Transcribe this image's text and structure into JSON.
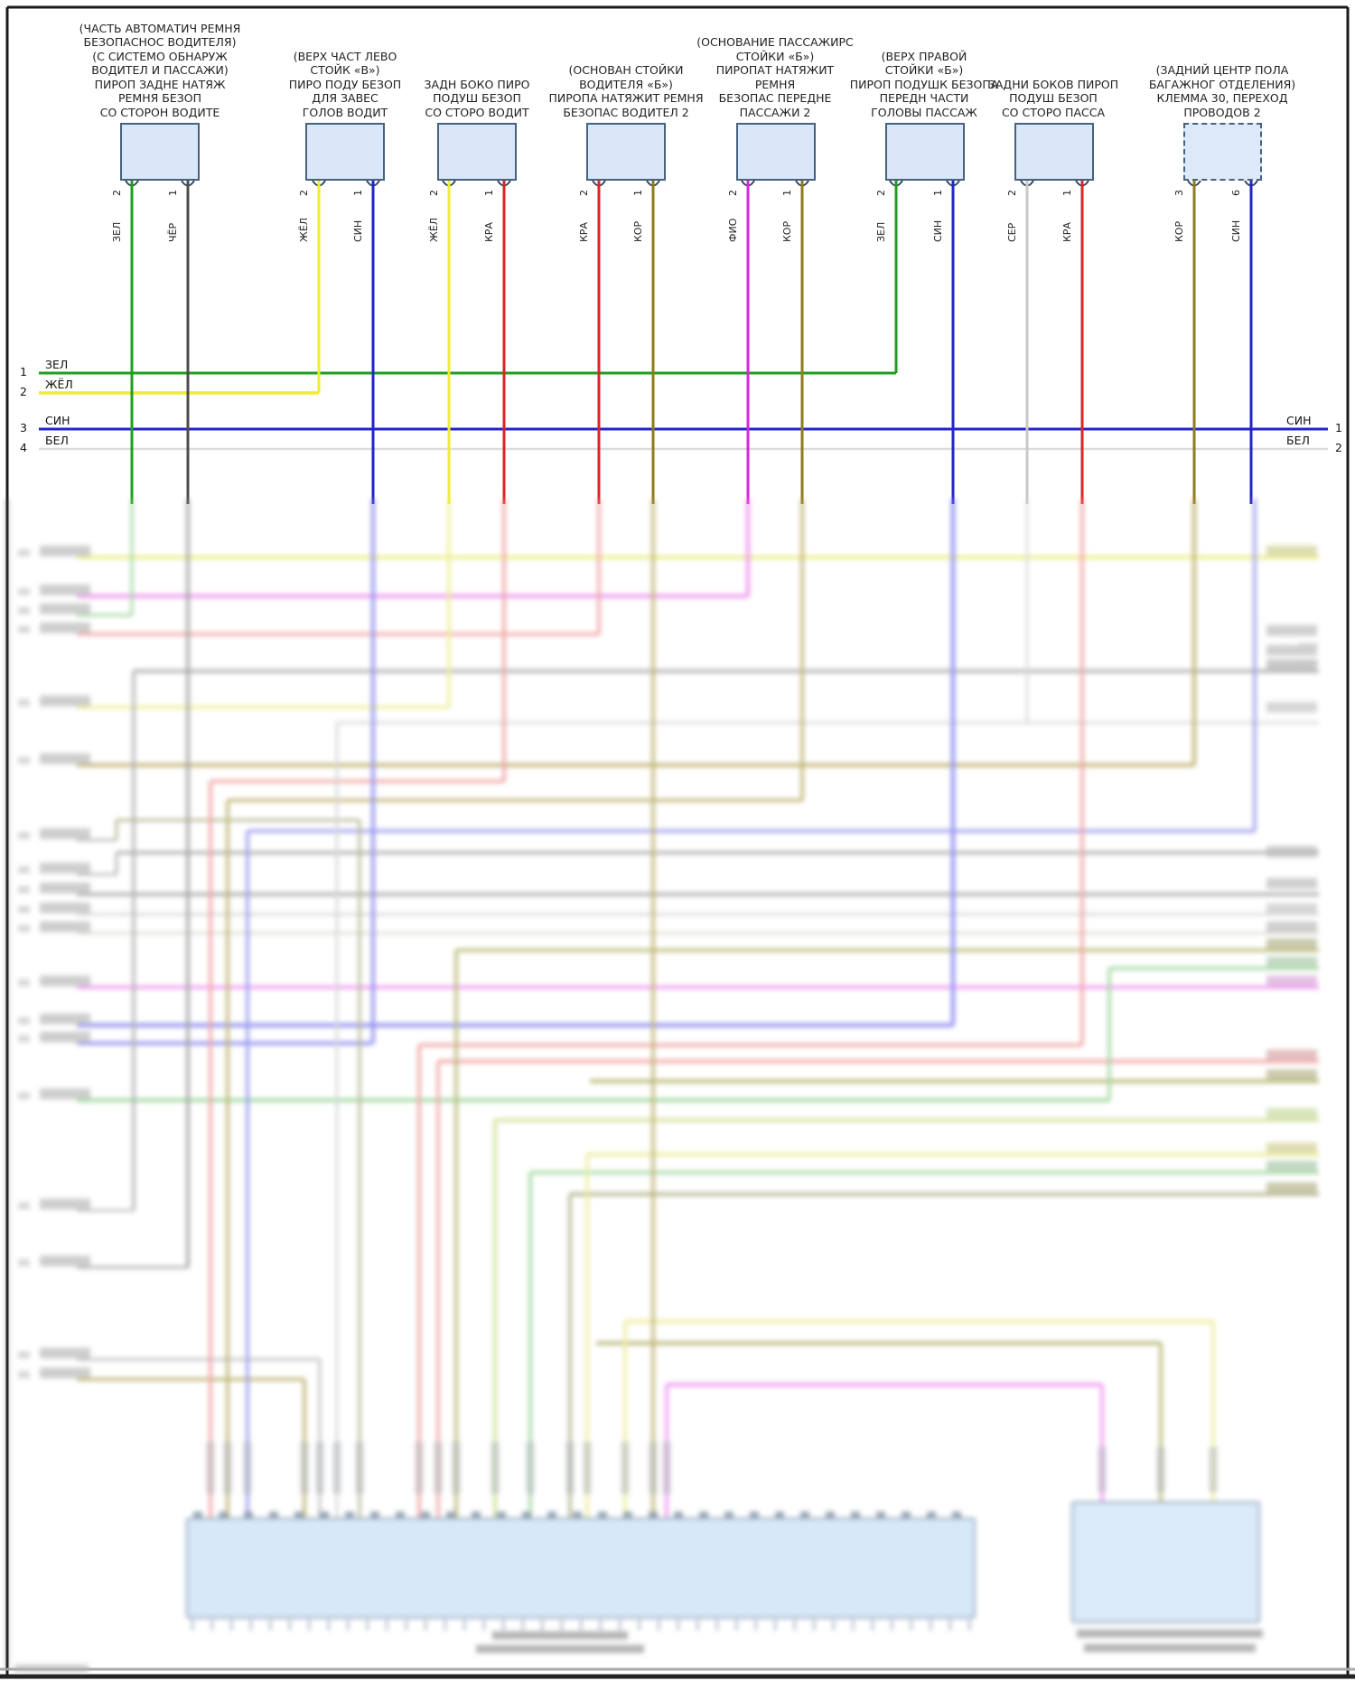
{
  "diagram": {
    "kind": "airbag-pyrotechnic-wiring-diagram",
    "language": "ru",
    "connectors": [
      {
        "id": "1",
        "label": "(ЧАСТЬ АВТОМАТИЧ РЕМНЯ\nБЕЗОПАСНОС ВОДИТЕЛЯ)\n(С СИСТЕМО ОБНАРУЖ\nВОДИТЕЛ И ПАССАЖИ)\nПИРОП ЗАДНЕ НАТЯЖ\nРЕМНЯ БЕЗОП\nСО СТОРОН ВОДИТЕ",
        "pins": [
          {
            "n": "2",
            "wire": "ЗЕЛ"
          },
          {
            "n": "1",
            "wire": "ЧЁР"
          }
        ]
      },
      {
        "id": "2",
        "label": "(ВЕРХ ЧАСТ ЛЕВО\nСТОЙК «В»)\nПИРО ПОДУ БЕЗОП\nДЛЯ ЗАВЕС\nГОЛОВ ВОДИТ",
        "pins": [
          {
            "n": "2",
            "wire": "ЖЁЛ"
          },
          {
            "n": "1",
            "wire": "СИН"
          }
        ]
      },
      {
        "id": "3",
        "label": "ЗАДН БОКО ПИРО\nПОДУШ БЕЗОП\nСО СТОРО ВОДИТ",
        "pins": [
          {
            "n": "2",
            "wire": "ЖЁЛ"
          },
          {
            "n": "1",
            "wire": "КРА"
          }
        ]
      },
      {
        "id": "4",
        "label": "(ОСНОВАН СТОЙКИ\nВОДИТЕЛЯ «Б»)\nПИРОПА НАТЯЖИТ РЕМНЯ\nБЕЗОПАС ВОДИТЕЛ 2",
        "pins": [
          {
            "n": "2",
            "wire": "КРА"
          },
          {
            "n": "1",
            "wire": "КОР"
          }
        ]
      },
      {
        "id": "5",
        "label": "(ОСНОВАНИЕ ПАССАЖИРС\nСТОЙКИ «Б»)\nПИРОПАТ НАТЯЖИТ\nРЕМНЯ\nБЕЗОПАС ПЕРЕДНЕ\nПАССАЖИ 2",
        "pins": [
          {
            "n": "2",
            "wire": "ФИО"
          },
          {
            "n": "1",
            "wire": "КОР"
          }
        ]
      },
      {
        "id": "6",
        "label": "(ВЕРХ ПРАВОЙ\nСТОЙКИ «Б»)\nПИРОП ПОДУШК БЕЗОПА\nПЕРЕДН ЧАСТИ\nГОЛОВЫ ПАССАЖ",
        "pins": [
          {
            "n": "2",
            "wire": "ЗЕЛ"
          },
          {
            "n": "1",
            "wire": "СИН"
          }
        ]
      },
      {
        "id": "7",
        "label": "ЗАДНИ БОКОВ ПИРОП\nПОДУШ БЕЗОП\nСО СТОРО ПАССА",
        "pins": [
          {
            "n": "2",
            "wire": "СЕР"
          },
          {
            "n": "1",
            "wire": "КРА"
          }
        ]
      },
      {
        "id": "8",
        "label": "(ЗАДНИЙ ЦЕНТР ПОЛА\nБАГАЖНОГ ОТДЕЛЕНИЯ)\nКЛЕММА 30, ПЕРЕХОД\nПРОВОДОВ 2",
        "dashed": true,
        "pins": [
          {
            "n": "3",
            "wire": "КОР"
          },
          {
            "n": "6",
            "wire": "СИН"
          }
        ]
      }
    ],
    "bus_rows_left": [
      {
        "num": "1",
        "label": "ЗЕЛ"
      },
      {
        "num": "2",
        "label": "ЖЁЛ"
      },
      {
        "num": "3",
        "label": "СИН"
      },
      {
        "num": "4",
        "label": "БЕЛ"
      }
    ],
    "bus_rows_right": [
      {
        "num": "1",
        "label": "СИН"
      },
      {
        "num": "2",
        "label": "БЕЛ"
      }
    ],
    "wire_colors": {
      "ЗЕЛ": "#1f9e1f",
      "ЧЁР": "#4d4d4d",
      "ЖЁЛ": "#f0ec30",
      "СИН": "#2424c8",
      "КРА": "#d92626",
      "КОР": "#8e7b1e",
      "ФИО": "#d926d9",
      "СЕР": "#c9c9c9",
      "БЕЛ": "#e0e0e0"
    }
  }
}
